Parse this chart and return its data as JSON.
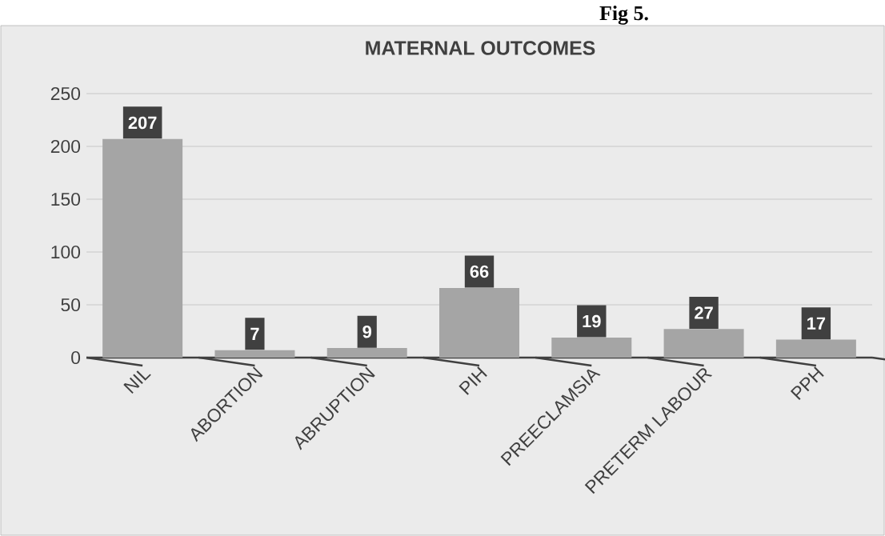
{
  "chart_data": {
    "type": "bar",
    "title": "MATERNAL OUTCOMES",
    "categories": [
      "NIL",
      "ABORTION",
      "ABRUPTION",
      "PIH",
      "PREECLAMSIA",
      "PRETERM LABOUR",
      "PPH"
    ],
    "values": [
      207,
      7,
      9,
      66,
      19,
      27,
      17
    ],
    "color": "#a5a5a5",
    "ylim": [
      0,
      250
    ],
    "yticks": [
      0,
      50,
      100,
      150,
      200,
      250
    ],
    "grid": "y",
    "data_labels": true,
    "annotations": [
      "Fig 5."
    ]
  }
}
